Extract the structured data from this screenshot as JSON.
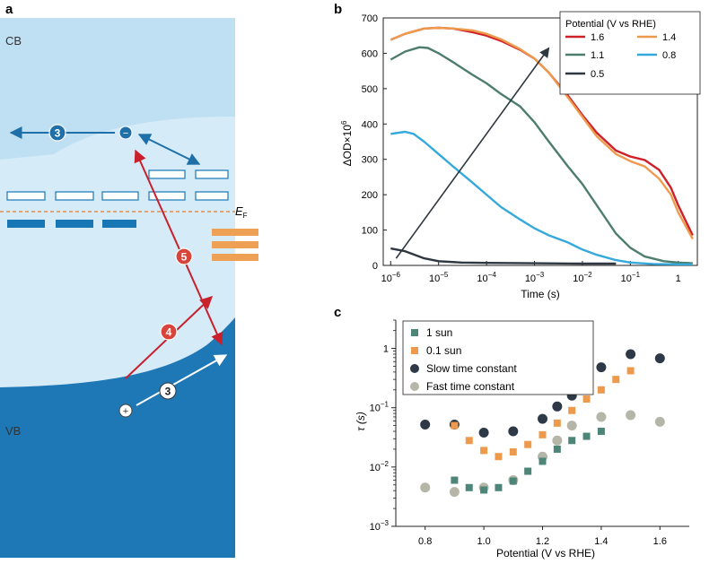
{
  "panel_labels": {
    "a": "a",
    "b": "b",
    "c": "c"
  },
  "diagram_a": {
    "cb_label": "CB",
    "vb_label": "VB",
    "fermi_label_main": "E",
    "fermi_label_sub": "F",
    "step_markers": [
      "3",
      "3",
      "4",
      "5"
    ],
    "electron_symbol": "−",
    "hole_symbol": "+",
    "colors": {
      "cb": "#bfe0f3",
      "gap": "#d6ebf8",
      "vb": "#1f78b6",
      "blue_arrow": "#1f6fa8",
      "red_arrow": "#c8202d",
      "surface_states": "#1777b5",
      "orange_states": "#eea055",
      "fermi": "#e8894a"
    }
  },
  "chart_data": [
    {
      "type": "line",
      "panel": "b",
      "xlabel": "Time (s)",
      "ylabel_main": "ΔOD×10",
      "ylabel_sup": "6",
      "x_scale": "log",
      "xlim": [
        7e-07,
        2.5
      ],
      "ylim": [
        0,
        700
      ],
      "x_tick_base": "10",
      "x_ticks": [
        {
          "base": "10",
          "exp": "−6",
          "value": 1e-06
        },
        {
          "base": "10",
          "exp": "−5",
          "value": 1e-05
        },
        {
          "base": "10",
          "exp": "−4",
          "value": 0.0001
        },
        {
          "base": "10",
          "exp": "−3",
          "value": 0.001
        },
        {
          "base": "10",
          "exp": "−2",
          "value": 0.01
        },
        {
          "base": "10",
          "exp": "−1",
          "value": 0.1
        },
        {
          "base": "1",
          "exp": "",
          "value": 1
        }
      ],
      "y_ticks": [
        "0",
        "100",
        "200",
        "300",
        "400",
        "500",
        "600",
        "700"
      ],
      "legend_title": "Potential (V vs RHE)",
      "legend_position": "top-right",
      "series": [
        {
          "name": "1.6",
          "color": "#cf2028",
          "points": [
            [
              1e-06,
              638
            ],
            [
              2e-06,
              655
            ],
            [
              5e-06,
              670
            ],
            [
              1e-05,
              672
            ],
            [
              2e-05,
              670
            ],
            [
              5e-05,
              660
            ],
            [
              0.0001,
              650
            ],
            [
              0.0002,
              635
            ],
            [
              0.0005,
              610
            ],
            [
              0.001,
              585
            ],
            [
              0.002,
              545
            ],
            [
              0.005,
              480
            ],
            [
              0.01,
              425
            ],
            [
              0.02,
              375
            ],
            [
              0.05,
              325
            ],
            [
              0.1,
              308
            ],
            [
              0.2,
              298
            ],
            [
              0.4,
              270
            ],
            [
              0.7,
              220
            ],
            [
              1,
              170
            ],
            [
              2,
              85
            ]
          ]
        },
        {
          "name": "1.4",
          "color": "#ee9a4d",
          "points": [
            [
              1e-06,
              638
            ],
            [
              2e-06,
              655
            ],
            [
              5e-06,
              670
            ],
            [
              1e-05,
              672
            ],
            [
              2e-05,
              670
            ],
            [
              5e-05,
              665
            ],
            [
              0.0001,
              655
            ],
            [
              0.0002,
              640
            ],
            [
              0.0005,
              612
            ],
            [
              0.001,
              585
            ],
            [
              0.002,
              545
            ],
            [
              0.005,
              475
            ],
            [
              0.01,
              420
            ],
            [
              0.02,
              365
            ],
            [
              0.05,
              315
            ],
            [
              0.1,
              295
            ],
            [
              0.2,
              280
            ],
            [
              0.4,
              245
            ],
            [
              0.7,
              200
            ],
            [
              1,
              150
            ],
            [
              2,
              75
            ]
          ]
        },
        {
          "name": "1.1",
          "color": "#4d7d6e",
          "points": [
            [
              1e-06,
              582
            ],
            [
              2e-06,
              605
            ],
            [
              4e-06,
              617
            ],
            [
              6e-06,
              615
            ],
            [
              1e-05,
              600
            ],
            [
              2e-05,
              575
            ],
            [
              5e-05,
              540
            ],
            [
              0.0001,
              515
            ],
            [
              0.0002,
              485
            ],
            [
              0.0005,
              450
            ],
            [
              0.001,
              405
            ],
            [
              0.002,
              350
            ],
            [
              0.005,
              280
            ],
            [
              0.01,
              230
            ],
            [
              0.02,
              170
            ],
            [
              0.05,
              90
            ],
            [
              0.1,
              50
            ],
            [
              0.2,
              25
            ],
            [
              0.5,
              12
            ],
            [
              1,
              8
            ],
            [
              2,
              6
            ]
          ]
        },
        {
          "name": "0.8",
          "color": "#35a9dc",
          "points": [
            [
              1e-06,
              372
            ],
            [
              2e-06,
              378
            ],
            [
              3e-06,
              372
            ],
            [
              5e-06,
              350
            ],
            [
              1e-05,
              315
            ],
            [
              2e-05,
              280
            ],
            [
              5e-05,
              235
            ],
            [
              0.0001,
              200
            ],
            [
              0.0002,
              165
            ],
            [
              0.0005,
              130
            ],
            [
              0.001,
              105
            ],
            [
              0.002,
              85
            ],
            [
              0.005,
              65
            ],
            [
              0.01,
              45
            ],
            [
              0.02,
              30
            ],
            [
              0.05,
              15
            ],
            [
              0.1,
              8
            ],
            [
              0.3,
              4
            ],
            [
              1,
              3
            ],
            [
              2,
              3
            ]
          ]
        },
        {
          "name": "0.5",
          "color": "#2f3841",
          "points": [
            [
              1e-06,
              48
            ],
            [
              2e-06,
              40
            ],
            [
              5e-06,
              20
            ],
            [
              1e-05,
              12
            ],
            [
              3e-05,
              8
            ],
            [
              0.0001,
              7
            ],
            [
              0.001,
              6
            ],
            [
              0.01,
              5
            ],
            [
              0.05,
              5
            ]
          ]
        }
      ],
      "arrow": {
        "from": [
          1.3e-06,
          20
        ],
        "to": [
          0.002,
          615
        ]
      }
    },
    {
      "type": "scatter",
      "panel": "c",
      "xlabel": "Potential (V vs RHE)",
      "ylabel": "τ (s)",
      "y_scale": "log",
      "xlim": [
        0.7,
        1.7
      ],
      "ylim": [
        0.001,
        3
      ],
      "x_ticks": [
        "0.8",
        "1.0",
        "1.2",
        "1.4",
        "1.6"
      ],
      "y_ticks": [
        {
          "base": "1",
          "exp": "",
          "value": 1
        },
        {
          "base": "10",
          "exp": "−1",
          "value": 0.1
        },
        {
          "base": "10",
          "exp": "−2",
          "value": 0.01
        },
        {
          "base": "10",
          "exp": "−3",
          "value": 0.001
        }
      ],
      "legend_position": "top-left",
      "series": [
        {
          "name": "1 sun",
          "marker": "square",
          "color": "#4d8578",
          "x": [
            0.9,
            0.95,
            1.0,
            1.05,
            1.1,
            1.15,
            1.2,
            1.25,
            1.3,
            1.35,
            1.4
          ],
          "y": [
            0.006,
            0.0045,
            0.0041,
            0.0045,
            0.0058,
            0.0085,
            0.0125,
            0.02,
            0.028,
            0.033,
            0.04
          ]
        },
        {
          "name": "0.1 sun",
          "marker": "square",
          "color": "#ee9a4d",
          "x": [
            0.9,
            0.95,
            1.0,
            1.05,
            1.1,
            1.15,
            1.2,
            1.25,
            1.3,
            1.35,
            1.4,
            1.45,
            1.5
          ],
          "y": [
            0.05,
            0.028,
            0.019,
            0.015,
            0.018,
            0.024,
            0.035,
            0.055,
            0.09,
            0.14,
            0.2,
            0.3,
            0.42
          ]
        },
        {
          "name": "Slow time constant",
          "marker": "circle",
          "color": "#2d3946",
          "x": [
            0.8,
            0.9,
            1.0,
            1.1,
            1.2,
            1.25,
            1.3,
            1.4,
            1.5,
            1.6
          ],
          "y": [
            0.052,
            0.052,
            0.038,
            0.04,
            0.065,
            0.105,
            0.16,
            0.48,
            0.8,
            0.68
          ]
        },
        {
          "name": "Fast time constant",
          "marker": "circle",
          "color": "#b6b6a8",
          "x": [
            0.8,
            0.9,
            1.0,
            1.1,
            1.2,
            1.25,
            1.3,
            1.4,
            1.5,
            1.6
          ],
          "y": [
            0.0045,
            0.0038,
            0.0045,
            0.006,
            0.015,
            0.028,
            0.05,
            0.07,
            0.075,
            0.058
          ]
        }
      ]
    }
  ]
}
